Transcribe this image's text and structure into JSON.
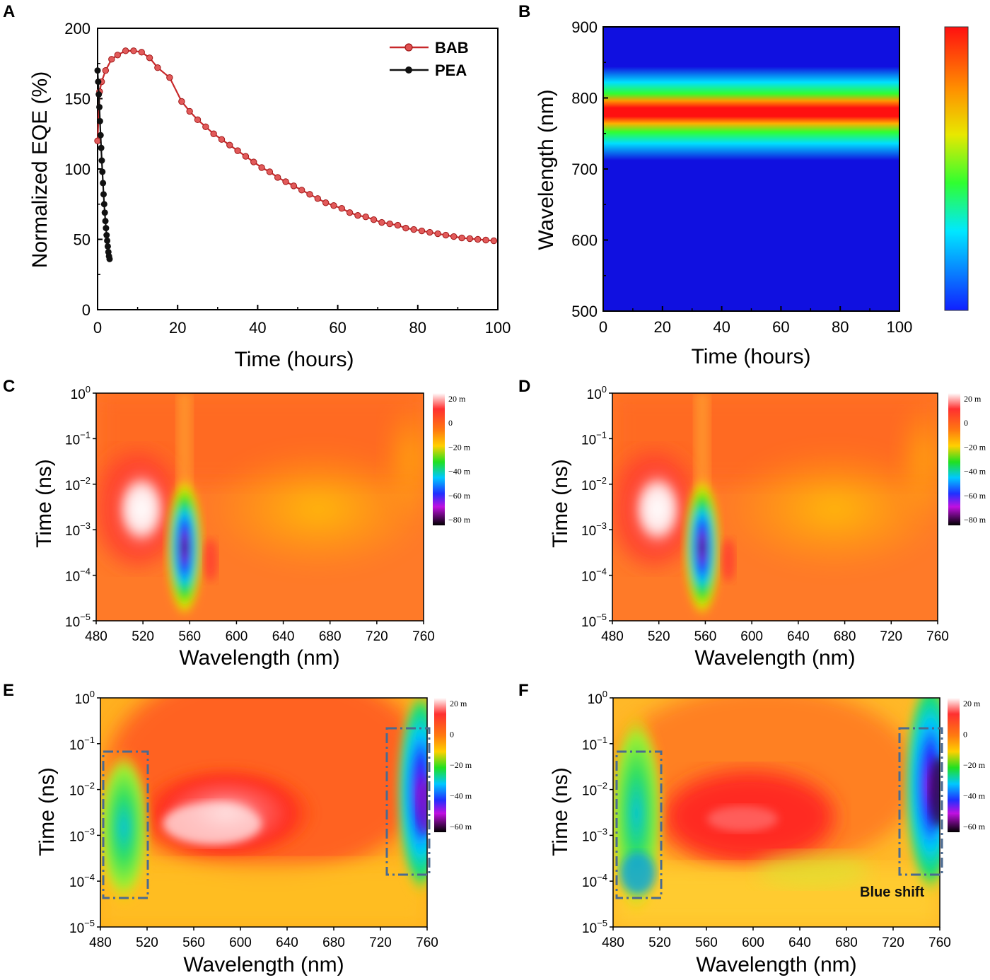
{
  "panels": {
    "A": {
      "letter": "A",
      "chart_data": {
        "type": "line",
        "xlabel": "Time (hours)",
        "ylabel": "Normalized EQE (%)",
        "xlim": [
          0,
          100
        ],
        "ylim": [
          0,
          200
        ],
        "xticks": [
          0,
          20,
          40,
          60,
          80,
          100
        ],
        "yticks": [
          0,
          50,
          100,
          150,
          200
        ],
        "legend_position": "top-right",
        "series": [
          {
            "name": "BAB",
            "color": "#c8282a",
            "x": [
              0,
              0.5,
              1,
              2,
              3.5,
              5,
              7,
              9,
              11,
              13,
              15,
              18,
              21,
              23,
              25,
              27,
              29,
              31,
              33,
              35,
              37,
              39,
              41,
              43,
              45,
              47,
              49,
              51,
              53,
              55,
              57,
              59,
              61,
              63,
              65,
              67,
              69,
              71,
              73,
              75,
              77,
              79,
              81,
              83,
              85,
              87,
              89,
              91,
              93,
              95,
              97,
              99
            ],
            "y": [
              120,
              155,
              162,
              170,
              178,
              181,
              184,
              184,
              183,
              179,
              172,
              165,
              148,
              141,
              135,
              130,
              125,
              121,
              117,
              113,
              109,
              105,
              101,
              98,
              94,
              91,
              88,
              85,
              82,
              79,
              76,
              74,
              72,
              69,
              67,
              66,
              64,
              62,
              61,
              60,
              58,
              57,
              56,
              55,
              54,
              53,
              52,
              51,
              50.5,
              50,
              49.5,
              49
            ]
          },
          {
            "name": "PEA",
            "color": "#111111",
            "x": [
              0,
              0.15,
              0.3,
              0.45,
              0.6,
              0.75,
              0.9,
              1.05,
              1.2,
              1.35,
              1.5,
              1.65,
              1.8,
              1.95,
              2.1,
              2.25,
              2.4,
              2.55,
              2.7,
              2.85,
              3.0
            ],
            "y": [
              170,
              162,
              153,
              144,
              134,
              124,
              115,
              106,
              98,
              90,
              82,
              75,
              69,
              63,
              58,
              53,
              49,
              45,
              41,
              38,
              36
            ]
          }
        ]
      }
    },
    "B": {
      "letter": "B",
      "chart_data": {
        "type": "heatmap",
        "xlabel": "Time (hours)",
        "ylabel": "Wavelength (nm)",
        "xlim": [
          0,
          100
        ],
        "ylim": [
          500,
          900
        ],
        "xticks": [
          0,
          20,
          40,
          60,
          80,
          100
        ],
        "yticks": [
          500,
          600,
          700,
          800,
          900
        ],
        "peak_wavelength_nm": 780,
        "colorscale": [
          "#1010e0",
          "#00e0ff",
          "#30ff30",
          "#ffe000",
          "#ff1010"
        ]
      }
    },
    "C": {
      "letter": "C",
      "chart_data": {
        "type": "heatmap",
        "xlabel": "Wavelength (nm)",
        "ylabel": "Time (ns)",
        "xticks": [
          480,
          520,
          560,
          600,
          640,
          680,
          720,
          760
        ],
        "ytick_exponents": [
          "0",
          "−1",
          "−2",
          "−3",
          "−4",
          "−5"
        ],
        "colorbar_labels": [
          "20 m",
          "0",
          "−20 m",
          "−40 m",
          "−60 m",
          "−80 m"
        ],
        "features": [
          "positive signal ~520 nm at 10^-3 ns",
          "negative bleach ~556 nm at 10^-4 ns"
        ]
      }
    },
    "D": {
      "letter": "D",
      "chart_data": {
        "type": "heatmap",
        "xlabel": "Wavelength (nm)",
        "ylabel": "Time (ns)",
        "xticks": [
          480,
          520,
          560,
          600,
          640,
          680,
          720,
          760
        ],
        "ytick_exponents": [
          "0",
          "−1",
          "−2",
          "−3",
          "−4",
          "−5"
        ],
        "colorbar_labels": [
          "20 m",
          "0",
          "−20 m",
          "−40 m",
          "−60 m",
          "−80 m"
        ],
        "features": [
          "positive signal ~520 nm at 10^-3 ns",
          "negative bleach ~558 nm at 10^-4 ns"
        ]
      }
    },
    "E": {
      "letter": "E",
      "chart_data": {
        "type": "heatmap",
        "xlabel": "Wavelength (nm)",
        "ylabel": "Time (ns)",
        "xticks": [
          480,
          520,
          560,
          600,
          640,
          680,
          720,
          760
        ],
        "ytick_exponents": [
          "0",
          "−1",
          "−2",
          "−3",
          "−4",
          "−5"
        ],
        "colorbar_labels": [
          "20 m",
          "0",
          "−20 m",
          "−40 m",
          "−60 m"
        ],
        "features": [
          "positive signal ~570 nm at 10^-2.5 ns",
          "negative bleach 480–520 nm",
          "negative bleach 725–760 nm"
        ]
      }
    },
    "F": {
      "letter": "F",
      "chart_data": {
        "type": "heatmap",
        "xlabel": "Wavelength (nm)",
        "ylabel": "Time (ns)",
        "xticks": [
          480,
          520,
          560,
          600,
          640,
          680,
          720,
          760
        ],
        "ytick_exponents": [
          "0",
          "−1",
          "−2",
          "−3",
          "−4",
          "−5"
        ],
        "colorbar_labels": [
          "20 m",
          "0",
          "−20 m",
          "−40 m",
          "−60 m"
        ],
        "annotation": "Blue shift",
        "features": [
          "positive signal ~600 nm at 10^-2.5 ns",
          "negative bleach 480–520 nm",
          "negative bleach 725–760 nm"
        ]
      }
    }
  },
  "axis_base": "10"
}
